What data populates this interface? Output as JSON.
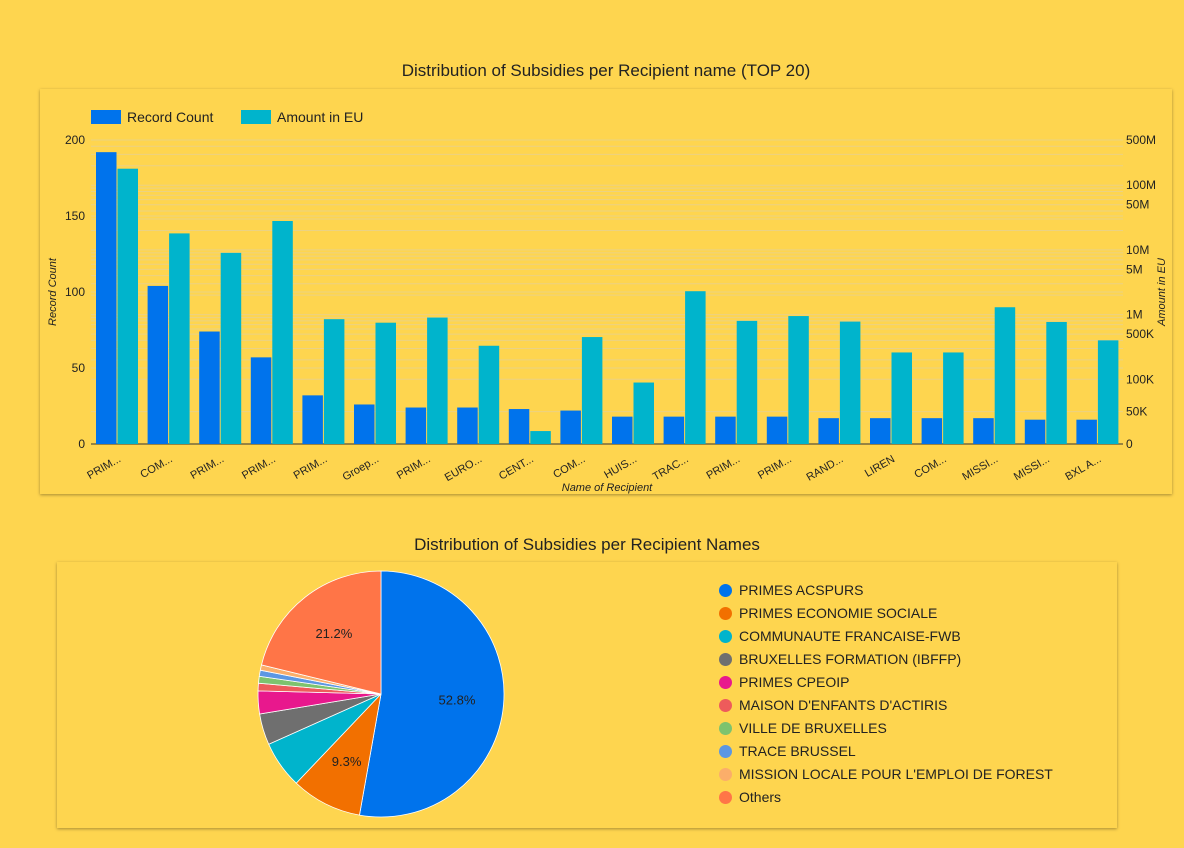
{
  "bar_chart": {
    "title": "Distribution of Subsidies per Recipient name (TOP 20)",
    "legend": [
      {
        "label": "Record Count",
        "color": "#0073ec"
      },
      {
        "label": "Amount in EU",
        "color": "#00b4cc"
      }
    ]
  },
  "pie_chart": {
    "title": "Distribution of Subsidies per Recipient Names"
  },
  "chart_data": [
    {
      "type": "bar",
      "title": "Distribution of Subsidies per Recipient name (TOP 20)",
      "xlabel": "Name of Recipient",
      "ylabel": "Record Count",
      "y2label": "Amount in EU",
      "categories": [
        "PRIM...",
        "COM...",
        "PRIM...",
        "PRIM...",
        "PRIM...",
        "Groep...",
        "PRIM...",
        "EURO...",
        "CENT...",
        "COM...",
        "HUIS...",
        "TRAC...",
        "PRIM...",
        "PRIM...",
        "RAND...",
        "LIREN",
        "COM...",
        "MISSI...",
        "MISSI...",
        "BXL A..."
      ],
      "series": [
        {
          "name": "Record Count",
          "axis": "left",
          "color": "#0073ec",
          "values": [
            192,
            104,
            74,
            57,
            32,
            26,
            24,
            24,
            23,
            22,
            18,
            18,
            18,
            18,
            17,
            17,
            17,
            17,
            16,
            16
          ]
        },
        {
          "name": "Amount in EU",
          "axis": "right",
          "color": "#00b4cc",
          "values": [
            180000000,
            18000000,
            9000000,
            28000000,
            850000,
            750000,
            900000,
            330000,
            20000,
            450000,
            95000,
            2300000,
            800000,
            950000,
            780000,
            260000,
            260000,
            1300000,
            770000,
            400000
          ]
        }
      ],
      "ylim": [
        0,
        200
      ],
      "yticks": [
        0,
        50,
        100,
        150,
        200
      ],
      "y2_scale": "symlog",
      "y2ticks": [
        {
          "value": 0,
          "label": "0"
        },
        {
          "value": 50000,
          "label": "50K"
        },
        {
          "value": 100000,
          "label": "100K"
        },
        {
          "value": 500000,
          "label": "500K"
        },
        {
          "value": 1000000,
          "label": "1M"
        },
        {
          "value": 5000000,
          "label": "5M"
        },
        {
          "value": 10000000,
          "label": "10M"
        },
        {
          "value": 50000000,
          "label": "50M"
        },
        {
          "value": 100000000,
          "label": "100M"
        },
        {
          "value": 500000000,
          "label": "500M"
        }
      ],
      "y2lim": [
        0,
        500000000
      ],
      "grid": true,
      "legend_position": "top-left"
    },
    {
      "type": "pie",
      "title": "Distribution of Subsidies per Recipient Names",
      "slices": [
        {
          "label": "PRIMES ACSPURS",
          "value": 52.8,
          "color": "#0073ec",
          "shown_label": "52.8%"
        },
        {
          "label": "PRIMES ECONOMIE SOCIALE",
          "value": 9.3,
          "color": "#f27000",
          "shown_label": "9.3%"
        },
        {
          "label": "COMMUNAUTE FRANCAISE-FWB",
          "value": 6.2,
          "color": "#00b4cc",
          "shown_label": ""
        },
        {
          "label": "BRUXELLES FORMATION (IBFFP)",
          "value": 4.1,
          "color": "#6f6f6f",
          "shown_label": ""
        },
        {
          "label": "PRIMES CPEOIP",
          "value": 3.0,
          "color": "#e8188d",
          "shown_label": ""
        },
        {
          "label": "MAISON D'ENFANTS D'ACTIRIS",
          "value": 1.0,
          "color": "#ee5b5b",
          "shown_label": ""
        },
        {
          "label": "VILLE DE BRUXELLES",
          "value": 0.9,
          "color": "#7dc36e",
          "shown_label": ""
        },
        {
          "label": "TRACE BRUSSEL",
          "value": 0.8,
          "color": "#5c97e3",
          "shown_label": ""
        },
        {
          "label": "MISSION LOCALE POUR L'EMPLOI DE FOREST",
          "value": 0.7,
          "color": "#fbae6a",
          "shown_label": ""
        },
        {
          "label": "Others",
          "value": 21.2,
          "color": "#ff7547",
          "shown_label": "21.2%"
        }
      ],
      "legend_position": "right"
    }
  ]
}
